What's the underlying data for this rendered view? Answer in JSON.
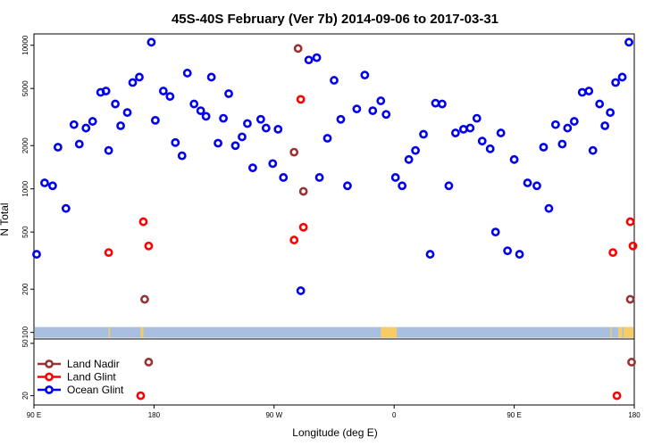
{
  "chart_data": {
    "type": "scatter",
    "title": "45S-40S February (Ver 7b)   2014-09-06 to 2017-03-31",
    "xlabel": "Longitude (deg E)",
    "ylabel": "N Total",
    "x_tick_labels": [
      "90 E",
      "180",
      "90 W",
      "0",
      "90 E",
      "180"
    ],
    "x_tick_values": [
      90,
      180,
      270,
      360,
      450,
      540
    ],
    "xlim": [
      90,
      540
    ],
    "upper_panel": {
      "scale": "log",
      "ylim": [
        90,
        12000
      ],
      "y_ticks": [
        100,
        200,
        500,
        1000,
        2000,
        5000,
        10000
      ]
    },
    "lower_panel": {
      "scale": "log",
      "ylim": [
        17,
        54
      ],
      "y_ticks": [
        20,
        50
      ]
    },
    "legend": {
      "position": "bottom-left",
      "entries": [
        {
          "label": "Land Nadir",
          "color": "#993333"
        },
        {
          "label": "Land Glint",
          "color": "#ff0000"
        },
        {
          "label": "Ocean Glint",
          "color": "#0000ee"
        }
      ]
    },
    "land_band_color": "#a8bfdf",
    "land_patch_color": "#f5cc66",
    "land_patches": [
      [
        146,
        147
      ],
      [
        170,
        172
      ],
      [
        350,
        362
      ],
      [
        522,
        523
      ],
      [
        528,
        531
      ],
      [
        532,
        541
      ]
    ],
    "series": [
      {
        "name": "Land Nadir",
        "color": "#993333",
        "points": [
          [
            173,
            170
          ],
          [
            285,
            1800
          ],
          [
            288,
            9500
          ],
          [
            292,
            960
          ],
          [
            176,
            36
          ],
          [
            537,
            170
          ],
          [
            538,
            36
          ]
        ]
      },
      {
        "name": "Land Glint",
        "color": "#ff0000",
        "points": [
          [
            146,
            360
          ],
          [
            172,
            590
          ],
          [
            176,
            400
          ],
          [
            285,
            440
          ],
          [
            290,
            4200
          ],
          [
            292,
            540
          ],
          [
            170,
            20
          ],
          [
            537,
            590
          ],
          [
            539,
            400
          ],
          [
            524,
            360
          ],
          [
            527,
            20
          ]
        ]
      },
      {
        "name": "Ocean Glint",
        "color": "#0000ee",
        "points": [
          [
            92,
            350
          ],
          [
            98,
            1100
          ],
          [
            104,
            1050
          ],
          [
            108,
            1950
          ],
          [
            114,
            730
          ],
          [
            120,
            2800
          ],
          [
            124,
            2050
          ],
          [
            129,
            2650
          ],
          [
            134,
            2950
          ],
          [
            140,
            4700
          ],
          [
            144,
            4800
          ],
          [
            146,
            1850
          ],
          [
            151,
            3900
          ],
          [
            155,
            2750
          ],
          [
            160,
            3400
          ],
          [
            164,
            5500
          ],
          [
            169,
            6000
          ],
          [
            178,
            10500
          ],
          [
            181,
            3000
          ],
          [
            187,
            4800
          ],
          [
            192,
            4400
          ],
          [
            196,
            2100
          ],
          [
            201,
            1700
          ],
          [
            205,
            6400
          ],
          [
            210,
            3900
          ],
          [
            215,
            3500
          ],
          [
            219,
            3200
          ],
          [
            223,
            6000
          ],
          [
            228,
            2080
          ],
          [
            232,
            3100
          ],
          [
            236,
            4600
          ],
          [
            241,
            2000
          ],
          [
            246,
            2300
          ],
          [
            250,
            2850
          ],
          [
            254,
            1400
          ],
          [
            260,
            3050
          ],
          [
            264,
            2650
          ],
          [
            269,
            1500
          ],
          [
            273,
            2600
          ],
          [
            277,
            1200
          ],
          [
            290,
            195
          ],
          [
            296,
            7900
          ],
          [
            302,
            8200
          ],
          [
            304,
            1200
          ],
          [
            310,
            2250
          ],
          [
            315,
            5700
          ],
          [
            320,
            3050
          ],
          [
            325,
            1050
          ],
          [
            332,
            3600
          ],
          [
            338,
            6200
          ],
          [
            344,
            3500
          ],
          [
            350,
            4100
          ],
          [
            354,
            3300
          ],
          [
            361,
            1200
          ],
          [
            366,
            1050
          ],
          [
            371,
            1600
          ],
          [
            376,
            1850
          ],
          [
            382,
            2400
          ],
          [
            387,
            350
          ],
          [
            391,
            3950
          ],
          [
            396,
            3900
          ],
          [
            401,
            1050
          ],
          [
            406,
            2450
          ],
          [
            412,
            2600
          ],
          [
            417,
            2650
          ],
          [
            422,
            3100
          ],
          [
            426,
            2150
          ],
          [
            432,
            1900
          ],
          [
            436,
            500
          ],
          [
            440,
            2450
          ],
          [
            445,
            370
          ],
          [
            450,
            1600
          ],
          [
            454,
            350
          ],
          [
            460,
            1100
          ],
          [
            467,
            1050
          ],
          [
            472,
            1950
          ],
          [
            476,
            730
          ],
          [
            481,
            2800
          ],
          [
            486,
            2050
          ],
          [
            490,
            2650
          ],
          [
            495,
            2950
          ],
          [
            501,
            4700
          ],
          [
            506,
            4800
          ],
          [
            509,
            1850
          ],
          [
            514,
            3900
          ],
          [
            518,
            2750
          ],
          [
            522,
            3400
          ],
          [
            526,
            5500
          ],
          [
            531,
            6000
          ],
          [
            536,
            10500
          ]
        ]
      }
    ]
  }
}
